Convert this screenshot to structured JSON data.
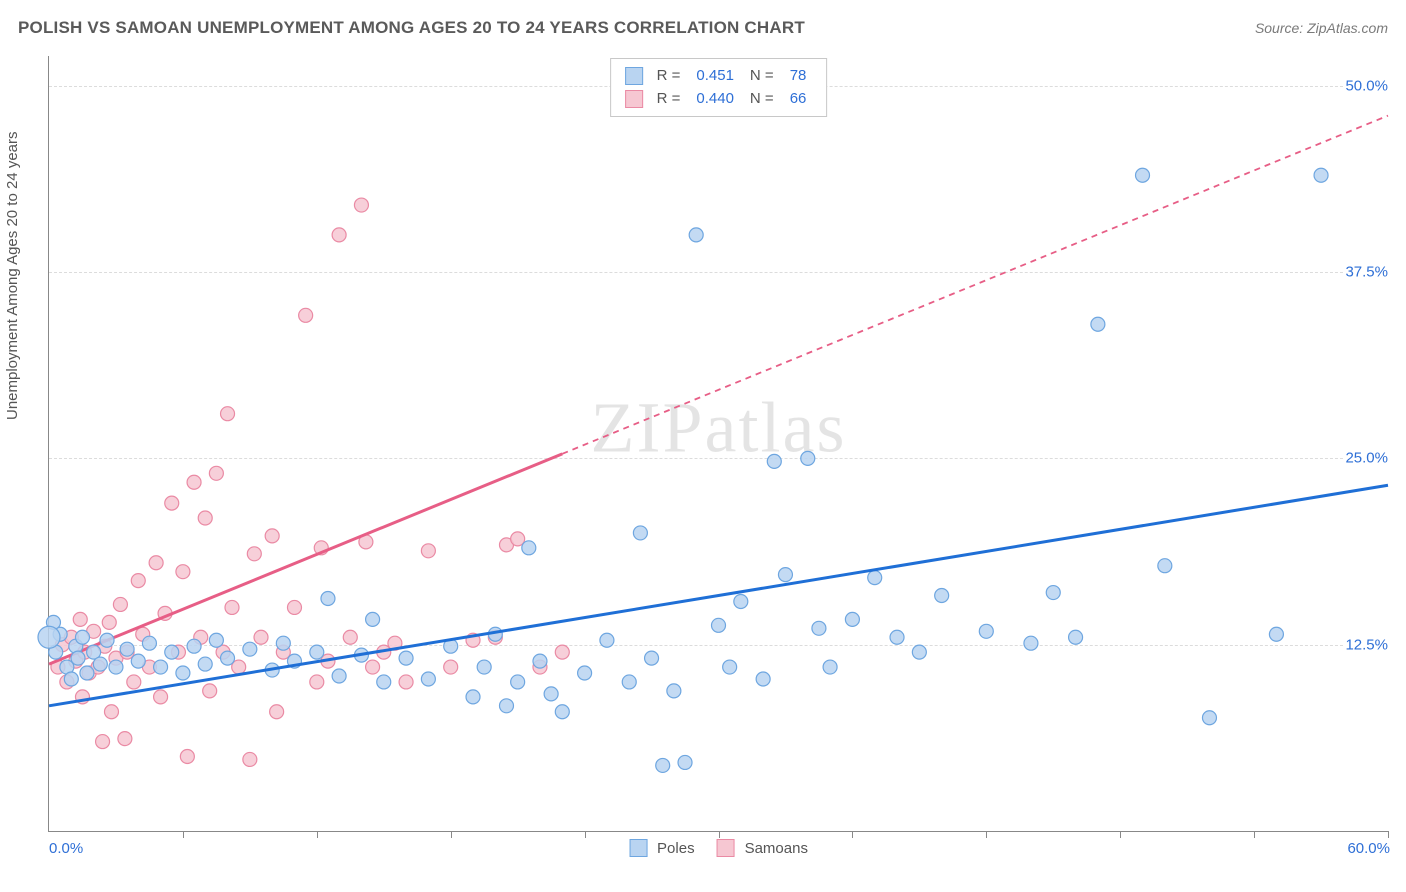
{
  "title": "POLISH VS SAMOAN UNEMPLOYMENT AMONG AGES 20 TO 24 YEARS CORRELATION CHART",
  "source_label": "Source: ",
  "source_name": "ZipAtlas.com",
  "yaxis_label": "Unemployment Among Ages 20 to 24 years",
  "watermark_a": "ZIP",
  "watermark_b": "atlas",
  "chart": {
    "type": "scatter",
    "xlim": [
      0,
      60
    ],
    "ylim": [
      0,
      52
    ],
    "x_min_label": "0.0%",
    "x_max_label": "60.0%",
    "y_ticks": [
      12.5,
      25.0,
      37.5,
      50.0
    ],
    "y_tick_labels": [
      "12.5%",
      "25.0%",
      "37.5%",
      "50.0%"
    ],
    "x_minor_ticks": [
      6,
      12,
      18,
      24,
      30,
      36,
      42,
      48,
      54,
      60
    ],
    "background": "#ffffff",
    "grid_color": "#dcdcdc",
    "axis_color": "#888888",
    "label_color": "#2e6fd6",
    "marker_radius": 7,
    "marker_radius_large": 11,
    "marker_stroke_width": 1.2,
    "trend_line_width": 3,
    "trend_dash": "6,5"
  },
  "series": {
    "poles": {
      "label": "Poles",
      "fill": "#b9d4f1",
      "stroke": "#6ea6e0",
      "line_color": "#1f6fd6",
      "R_label": "R =",
      "R": "0.451",
      "N_label": "N =",
      "N": "78",
      "trend": {
        "x1": 0,
        "y1": 8.4,
        "x2": 60,
        "y2": 23.2,
        "dash_from_x": 60
      },
      "points": [
        [
          0.3,
          12.0
        ],
        [
          0.5,
          13.2
        ],
        [
          0.8,
          11.0
        ],
        [
          1.0,
          10.2
        ],
        [
          1.2,
          12.4
        ],
        [
          1.3,
          11.6
        ],
        [
          1.5,
          13.0
        ],
        [
          1.7,
          10.6
        ],
        [
          2.0,
          12.0
        ],
        [
          2.3,
          11.2
        ],
        [
          2.6,
          12.8
        ],
        [
          3.0,
          11.0
        ],
        [
          3.5,
          12.2
        ],
        [
          4.0,
          11.4
        ],
        [
          4.5,
          12.6
        ],
        [
          5.0,
          11.0
        ],
        [
          5.5,
          12.0
        ],
        [
          6.0,
          10.6
        ],
        [
          6.5,
          12.4
        ],
        [
          7.0,
          11.2
        ],
        [
          7.5,
          12.8
        ],
        [
          8.0,
          11.6
        ],
        [
          9.0,
          12.2
        ],
        [
          10.0,
          10.8
        ],
        [
          10.5,
          12.6
        ],
        [
          11.0,
          11.4
        ],
        [
          12.0,
          12.0
        ],
        [
          12.5,
          15.6
        ],
        [
          13.0,
          10.4
        ],
        [
          14.0,
          11.8
        ],
        [
          14.5,
          14.2
        ],
        [
          15.0,
          10.0
        ],
        [
          16.0,
          11.6
        ],
        [
          17.0,
          10.2
        ],
        [
          18.0,
          12.4
        ],
        [
          19.0,
          9.0
        ],
        [
          19.5,
          11.0
        ],
        [
          20.0,
          13.2
        ],
        [
          20.5,
          8.4
        ],
        [
          21.0,
          10.0
        ],
        [
          21.5,
          19.0
        ],
        [
          22.0,
          11.4
        ],
        [
          22.5,
          9.2
        ],
        [
          23.0,
          8.0
        ],
        [
          24.0,
          10.6
        ],
        [
          25.0,
          12.8
        ],
        [
          26.0,
          10.0
        ],
        [
          26.5,
          20.0
        ],
        [
          27.0,
          11.6
        ],
        [
          27.5,
          4.4
        ],
        [
          28.0,
          9.4
        ],
        [
          28.5,
          4.6
        ],
        [
          29.0,
          40.0
        ],
        [
          30.0,
          13.8
        ],
        [
          30.5,
          11.0
        ],
        [
          31.0,
          15.4
        ],
        [
          32.0,
          10.2
        ],
        [
          32.5,
          24.8
        ],
        [
          33.0,
          17.2
        ],
        [
          34.0,
          25.0
        ],
        [
          34.5,
          13.6
        ],
        [
          35.0,
          11.0
        ],
        [
          36.0,
          14.2
        ],
        [
          37.0,
          17.0
        ],
        [
          38.0,
          13.0
        ],
        [
          39.0,
          12.0
        ],
        [
          40.0,
          15.8
        ],
        [
          42.0,
          13.4
        ],
        [
          44.0,
          12.6
        ],
        [
          45.0,
          16.0
        ],
        [
          46.0,
          13.0
        ],
        [
          47.0,
          34.0
        ],
        [
          49.0,
          44.0
        ],
        [
          50.0,
          17.8
        ],
        [
          52.0,
          7.6
        ],
        [
          55.0,
          13.2
        ],
        [
          57.0,
          44.0
        ],
        [
          0.2,
          14.0
        ]
      ],
      "large_point": [
        0.0,
        13.0
      ]
    },
    "samoans": {
      "label": "Samoans",
      "fill": "#f6c7d2",
      "stroke": "#ea8aa4",
      "line_color": "#e75e86",
      "R_label": "R =",
      "R": "0.440",
      "N_label": "N =",
      "N": "66",
      "trend": {
        "x1": 0,
        "y1": 11.2,
        "x2": 60,
        "y2": 48.0,
        "dash_from_x": 23
      },
      "points": [
        [
          0.4,
          11.0
        ],
        [
          0.6,
          12.5
        ],
        [
          0.8,
          10.0
        ],
        [
          1.0,
          13.0
        ],
        [
          1.2,
          11.4
        ],
        [
          1.4,
          14.2
        ],
        [
          1.5,
          9.0
        ],
        [
          1.6,
          12.0
        ],
        [
          1.8,
          10.6
        ],
        [
          2.0,
          13.4
        ],
        [
          2.2,
          11.0
        ],
        [
          2.4,
          6.0
        ],
        [
          2.5,
          12.4
        ],
        [
          2.7,
          14.0
        ],
        [
          2.8,
          8.0
        ],
        [
          3.0,
          11.6
        ],
        [
          3.2,
          15.2
        ],
        [
          3.4,
          6.2
        ],
        [
          3.5,
          12.0
        ],
        [
          3.8,
          10.0
        ],
        [
          4.0,
          16.8
        ],
        [
          4.2,
          13.2
        ],
        [
          4.5,
          11.0
        ],
        [
          4.8,
          18.0
        ],
        [
          5.0,
          9.0
        ],
        [
          5.2,
          14.6
        ],
        [
          5.5,
          22.0
        ],
        [
          5.8,
          12.0
        ],
        [
          6.0,
          17.4
        ],
        [
          6.2,
          5.0
        ],
        [
          6.5,
          23.4
        ],
        [
          6.8,
          13.0
        ],
        [
          7.0,
          21.0
        ],
        [
          7.2,
          9.4
        ],
        [
          7.5,
          24.0
        ],
        [
          7.8,
          12.0
        ],
        [
          8.0,
          28.0
        ],
        [
          8.2,
          15.0
        ],
        [
          8.5,
          11.0
        ],
        [
          9.0,
          4.8
        ],
        [
          9.2,
          18.6
        ],
        [
          9.5,
          13.0
        ],
        [
          10.0,
          19.8
        ],
        [
          10.2,
          8.0
        ],
        [
          10.5,
          12.0
        ],
        [
          11.0,
          15.0
        ],
        [
          11.5,
          34.6
        ],
        [
          12.0,
          10.0
        ],
        [
          12.2,
          19.0
        ],
        [
          12.5,
          11.4
        ],
        [
          13.0,
          40.0
        ],
        [
          13.5,
          13.0
        ],
        [
          14.0,
          42.0
        ],
        [
          14.2,
          19.4
        ],
        [
          14.5,
          11.0
        ],
        [
          15.0,
          12.0
        ],
        [
          15.5,
          12.6
        ],
        [
          16.0,
          10.0
        ],
        [
          17.0,
          18.8
        ],
        [
          18.0,
          11.0
        ],
        [
          19.0,
          12.8
        ],
        [
          20.0,
          13.0
        ],
        [
          20.5,
          19.2
        ],
        [
          21.0,
          19.6
        ],
        [
          22.0,
          11.0
        ],
        [
          23.0,
          12.0
        ]
      ]
    }
  }
}
